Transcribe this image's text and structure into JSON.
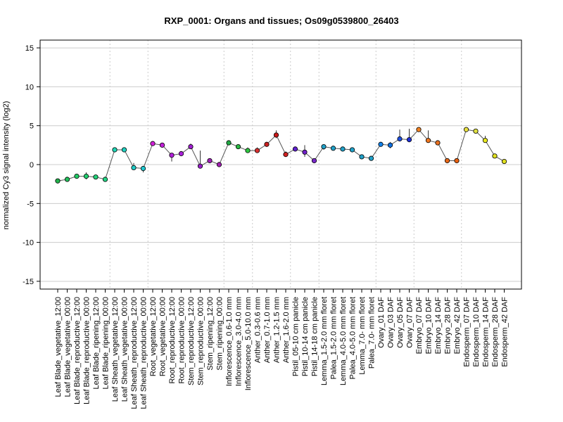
{
  "chart_data": {
    "type": "line",
    "title": "RXP_0001: Organs and tissues; Os09g0539800_26403",
    "xlabel": "",
    "ylabel": "normalized Cy3 signal intensity (log2)",
    "ylim": [
      -16,
      16
    ],
    "yticks": [
      -15,
      -10,
      -5,
      0,
      5,
      10,
      15
    ],
    "grid": true,
    "line_color": "#555555",
    "categories": [
      "Leaf Blade_vegetative_12:00",
      "Leaf Blade_vegetative_00:00",
      "Leaf Blade_reproductive_12:00",
      "Leaf Blade_reproductive_00:00",
      "Leaf Blade_ripening_12:00",
      "Leaf Blade_ripening_00:00",
      "Leaf Sheath_vegetative_12:00",
      "Leaf Sheath_vegetative_00:00",
      "Leaf Sheath_reproductive_12:00",
      "Leaf Sheath_reproductive_00:00",
      "Root_vegetative_12:00",
      "Root_vegetative_00:00",
      "Root_reproductive_12:00",
      "Root_reproductive_00:00",
      "Stem_reproductive_12:00",
      "Stem_reproductive_00:00",
      "Stem_ripening_12:00",
      "Stem_ripening_00:00",
      "Inflorescence_0.6-1.0 mm",
      "Inflorescence_3.0-4.0 mm",
      "Inflorescence_5.0-10.0 mm",
      "Anther_0.3-0.6 mm",
      "Anther_0.7-1.0 mm",
      "Anther_1.2-1.5 mm",
      "Anther_1.6-2.0 mm",
      "Pistil_05-10 cm panicle",
      "Pistil_10-14 cm panicle",
      "Pistil_14-18 cm panicle",
      "Lemma_1.5-2.0 mm floret",
      "Palea_1.5-2.0 mm floret",
      "Lemma_4.0-5.0 mm floret",
      "Palea_4.0-5.0 mm floret",
      "Lemma_7.0- mm floret",
      "Palea_7.0- mm floret",
      "Ovary_01 DAF",
      "Ovary_03 DAF",
      "Ovary_05 DAF",
      "Ovary_07 DAF",
      "Embryo_07 DAF",
      "Embryo_10 DAF",
      "Embryo_14 DAF",
      "Embryo_28 DAF",
      "Embryo_42 DAF",
      "Endosperm_07 DAF",
      "Endosperm_10 DAF",
      "Endosperm_14 DAF",
      "Endosperm_28 DAF",
      "Endosperm_42 DAF"
    ],
    "values": [
      -2.1,
      -1.9,
      -1.5,
      -1.5,
      -1.6,
      -1.9,
      1.9,
      1.9,
      -0.4,
      -0.5,
      2.7,
      2.5,
      1.2,
      1.4,
      2.3,
      -0.2,
      0.5,
      0.0,
      2.8,
      2.3,
      1.8,
      1.8,
      2.6,
      3.8,
      1.3,
      2.0,
      1.6,
      0.5,
      2.3,
      2.1,
      2.0,
      1.9,
      1.0,
      0.8,
      2.6,
      2.5,
      3.3,
      3.2,
      4.5,
      3.1,
      2.8,
      0.5,
      0.5,
      4.5,
      4.3,
      3.1,
      1.1,
      0.4
    ],
    "err_low": [
      -2.1,
      -2.0,
      -1.8,
      -1.9,
      -1.8,
      -2.0,
      1.6,
      1.8,
      -0.7,
      -1.0,
      2.6,
      2.4,
      0.4,
      1.2,
      2.0,
      -0.5,
      0.4,
      -0.3,
      2.6,
      2.1,
      1.5,
      1.5,
      2.5,
      3.4,
      1.0,
      1.8,
      1.0,
      0.3,
      1.9,
      1.9,
      1.8,
      1.7,
      0.9,
      0.7,
      2.5,
      2.1,
      3.1,
      3.0,
      4.4,
      2.8,
      2.5,
      0.4,
      0.4,
      4.4,
      4.1,
      2.8,
      1.0,
      0.3
    ],
    "err_high": [
      -2.0,
      -1.7,
      -1.2,
      -1.0,
      -1.4,
      -1.7,
      2.1,
      2.0,
      0.2,
      -0.2,
      2.8,
      2.6,
      1.4,
      1.6,
      2.7,
      1.8,
      0.6,
      0.2,
      3.0,
      2.5,
      2.2,
      2.2,
      2.7,
      4.4,
      1.7,
      2.2,
      2.5,
      0.8,
      2.6,
      2.3,
      2.2,
      2.1,
      1.1,
      0.9,
      2.7,
      2.9,
      4.5,
      4.6,
      4.6,
      4.4,
      3.0,
      0.6,
      0.6,
      4.6,
      4.6,
      3.7,
      1.3,
      0.5
    ],
    "point_colors": [
      "#22b14c",
      "#22c15c",
      "#22cc66",
      "#22d070",
      "#22d37a",
      "#22d584",
      "#1fd4b4",
      "#1fd0c0",
      "#1fccc8",
      "#1fc8d0",
      "#d020d8",
      "#c020d8",
      "#b020d8",
      "#a820d8",
      "#a020d0",
      "#9820c8",
      "#a020b8",
      "#a020b0",
      "#22aa44",
      "#2ab844",
      "#2ec640",
      "#d83030",
      "#c82020",
      "#c81818",
      "#d02020",
      "#6020d0",
      "#7020c8",
      "#7828c8",
      "#20a0c8",
      "#20a0c8",
      "#20a0c8",
      "#20a0c8",
      "#20a0c8",
      "#20a0c8",
      "#1080e8",
      "#1070e0",
      "#2050e0",
      "#2030d8",
      "#f08020",
      "#f07820",
      "#e87020",
      "#e86818",
      "#e86010",
      "#e8e040",
      "#e0e040",
      "#e8e820",
      "#e0e020",
      "#e0e020"
    ]
  }
}
